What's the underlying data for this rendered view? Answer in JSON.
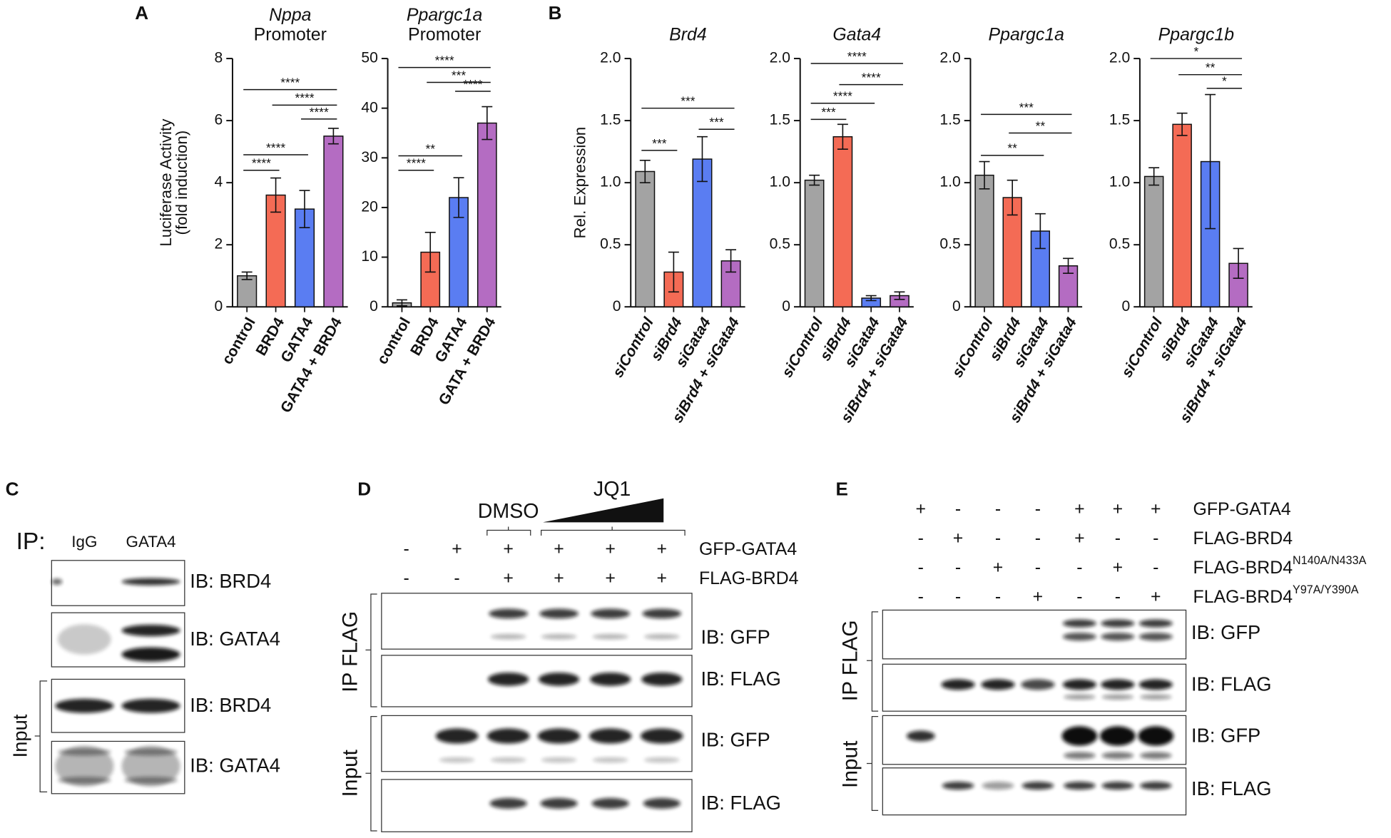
{
  "chart_data": [
    {
      "type": "bar",
      "title": "Nppa",
      "subtitle": "Promoter",
      "ylabel": [
        "Luciferase Activity",
        "(fold induction)"
      ],
      "categories": [
        "control",
        "BRD4",
        "GATA4",
        "GATA4 + BRD4"
      ],
      "values": [
        1.0,
        3.6,
        3.15,
        5.5
      ],
      "errors": [
        0.12,
        0.55,
        0.6,
        0.25
      ],
      "colors": [
        "#a3a3a3",
        "#f46b55",
        "#5a7df2",
        "#b46cc2"
      ],
      "ylim": [
        0,
        8
      ],
      "yticks": [
        0,
        2,
        4,
        6,
        8
      ],
      "category_style": "normal",
      "brackets": [
        {
          "x": [
            "control",
            "BRD4"
          ],
          "y": 4.4,
          "label": "****"
        },
        {
          "x": [
            "control",
            "GATA4"
          ],
          "y": 4.9,
          "label": "****"
        },
        {
          "x": [
            "GATA4",
            "GATA4 + BRD4"
          ],
          "y": 6.05,
          "label": "****"
        },
        {
          "x": [
            "BRD4",
            "GATA4 + BRD4"
          ],
          "y": 6.5,
          "label": "****"
        },
        {
          "x": [
            "control",
            "GATA4 + BRD4"
          ],
          "y": 7.0,
          "label": "****"
        }
      ]
    },
    {
      "type": "bar",
      "title": "Ppargc1a",
      "subtitle": "Promoter",
      "categories": [
        "control",
        "BRD4",
        "GATA4",
        "GATA + BRD4"
      ],
      "values": [
        0.8,
        11,
        22,
        37
      ],
      "errors": [
        0.6,
        4,
        4,
        3.3
      ],
      "colors": [
        "#a3a3a3",
        "#f46b55",
        "#5a7df2",
        "#b46cc2"
      ],
      "ylim": [
        0,
        50
      ],
      "yticks": [
        0,
        10,
        20,
        30,
        40,
        50
      ],
      "category_style": "normal",
      "brackets": [
        {
          "x": [
            "control",
            "BRD4"
          ],
          "y": 27.5,
          "label": "****"
        },
        {
          "x": [
            "control",
            "GATA4"
          ],
          "y": 30.4,
          "label": "**"
        },
        {
          "x": [
            "GATA4",
            "GATA + BRD4"
          ],
          "y": 43.4,
          "label": "****"
        },
        {
          "x": [
            "BRD4",
            "GATA + BRD4"
          ],
          "y": 45.2,
          "label": "***"
        },
        {
          "x": [
            "control",
            "GATA + BRD4"
          ],
          "y": 48.2,
          "label": "****"
        }
      ]
    },
    {
      "type": "bar",
      "title": "Brd4",
      "ylabel": "Rel. Expression",
      "categories": [
        "siControl",
        "siBrd4",
        "siGata4",
        "siBrd4 + siGata4"
      ],
      "values": [
        1.09,
        0.28,
        1.19,
        0.37
      ],
      "errors": [
        0.09,
        0.16,
        0.18,
        0.09
      ],
      "colors": [
        "#a3a3a3",
        "#f46b55",
        "#5a7df2",
        "#b46cc2"
      ],
      "ylim": [
        0,
        2
      ],
      "yticks": [
        0,
        0.5,
        {
          "value": 1,
          "label": "1.0"
        },
        1.5,
        {
          "value": 2,
          "label": "2.0"
        }
      ],
      "category_style": "italic",
      "brackets": [
        {
          "x": [
            "siControl",
            "siBrd4"
          ],
          "y": 1.26,
          "label": "***"
        },
        {
          "x": [
            "siGata4",
            "siBrd4 + siGata4"
          ],
          "y": 1.43,
          "label": "***"
        },
        {
          "x": [
            "siControl",
            "siBrd4 + siGata4"
          ],
          "y": 1.6,
          "label": "***"
        }
      ]
    },
    {
      "type": "bar",
      "title": "Gata4",
      "categories": [
        "siControl",
        "siBrd4",
        "siGata4",
        "siBrd4 + siGata4"
      ],
      "values": [
        1.02,
        1.37,
        0.07,
        0.09
      ],
      "errors": [
        0.04,
        0.1,
        0.02,
        0.03
      ],
      "colors": [
        "#a3a3a3",
        "#f46b55",
        "#5a7df2",
        "#b46cc2"
      ],
      "ylim": [
        0,
        2
      ],
      "yticks": [
        0,
        0.5,
        {
          "value": 1,
          "label": "1.0"
        },
        1.5,
        {
          "value": 2,
          "label": "2.0"
        }
      ],
      "category_style": "italic",
      "brackets": [
        {
          "x": [
            "siControl",
            "siBrd4"
          ],
          "y": 1.51,
          "label": "***"
        },
        {
          "x": [
            "siControl",
            "siGata4"
          ],
          "y": 1.64,
          "label": "****"
        },
        {
          "x": [
            "siBrd4",
            "siBrd4 + siGata4"
          ],
          "y": 1.79,
          "label": "****"
        },
        {
          "x": [
            "siControl",
            "siBrd4 + siGata4"
          ],
          "y": 1.96,
          "label": "****"
        }
      ]
    },
    {
      "type": "bar",
      "title": "Ppargc1a",
      "categories": [
        "siControl",
        "siBrd4",
        "siGata4",
        "siBrd4 + siGata4"
      ],
      "values": [
        1.06,
        0.88,
        0.61,
        0.33
      ],
      "errors": [
        0.11,
        0.14,
        0.14,
        0.06
      ],
      "colors": [
        "#a3a3a3",
        "#f46b55",
        "#5a7df2",
        "#b46cc2"
      ],
      "ylim": [
        0,
        2
      ],
      "yticks": [
        0,
        0.5,
        {
          "value": 1,
          "label": "1.0"
        },
        1.5,
        {
          "value": 2,
          "label": "2.0"
        }
      ],
      "category_style": "italic",
      "brackets": [
        {
          "x": [
            "siControl",
            "siGata4"
          ],
          "y": 1.22,
          "label": "**"
        },
        {
          "x": [
            "siBrd4",
            "siBrd4 + siGata4"
          ],
          "y": 1.4,
          "label": "**"
        },
        {
          "x": [
            "siControl",
            "siBrd4 + siGata4"
          ],
          "y": 1.55,
          "label": "***"
        }
      ]
    },
    {
      "type": "bar",
      "title": "Ppargc1b",
      "categories": [
        "siControl",
        "siBrd4",
        "siGata4",
        "siBrd4 + siGata4"
      ],
      "values": [
        1.05,
        1.47,
        1.17,
        0.35
      ],
      "errors": [
        0.07,
        0.09,
        0.54,
        0.12
      ],
      "colors": [
        "#a3a3a3",
        "#f46b55",
        "#5a7df2",
        "#b46cc2"
      ],
      "ylim": [
        0,
        2
      ],
      "yticks": [
        0,
        0.5,
        {
          "value": 1,
          "label": "1.0"
        },
        1.5,
        {
          "value": 2,
          "label": "2.0"
        }
      ],
      "category_style": "italic",
      "brackets": [
        {
          "x": [
            "siGata4",
            "siBrd4 + siGata4"
          ],
          "y": 1.76,
          "label": "*"
        },
        {
          "x": [
            "siBrd4",
            "siBrd4 + siGata4"
          ],
          "y": 1.87,
          "label": "**"
        },
        {
          "x": [
            "siControl",
            "siBrd4 + siGata4"
          ],
          "y": 2.0,
          "label": "*"
        }
      ]
    }
  ],
  "panel_labels": [
    "A",
    "B",
    "C",
    "D",
    "E"
  ],
  "panel_c": {
    "ip": "IP:",
    "lanes": [
      "IgG",
      "GATA4"
    ],
    "blots": [
      "IB: BRD4",
      "IB: GATA4",
      "IB: BRD4",
      "IB: GATA4"
    ],
    "group": "Input"
  },
  "panel_d": {
    "dmso": "DMSO",
    "jq1": "JQ1",
    "rows": [
      {
        "name": "GFP-GATA4",
        "signs": [
          "-",
          "+",
          "+",
          "+",
          "+",
          "+"
        ]
      },
      {
        "name": "FLAG-BRD4",
        "signs": [
          "-",
          "-",
          "+",
          "+",
          "+",
          "+"
        ]
      }
    ],
    "blots": [
      "IB: GFP",
      "IB: FLAG",
      "IB: GFP",
      "IB: FLAG"
    ],
    "groups": [
      "IP FLAG",
      "Input"
    ]
  },
  "panel_e": {
    "rows": [
      {
        "name": "GFP-GATA4",
        "signs": [
          "+",
          "-",
          "-",
          "-",
          "+",
          "+",
          "+"
        ]
      },
      {
        "name": "FLAG-BRD4",
        "signs": [
          "-",
          "+",
          "-",
          "-",
          "+",
          "-",
          "-"
        ]
      },
      {
        "name": "FLAG-BRD4",
        "sup": "N140A/N433A",
        "signs": [
          "-",
          "-",
          "+",
          "-",
          "-",
          "+",
          "-"
        ]
      },
      {
        "name": "FLAG-BRD4",
        "sup": "Y97A/Y390A",
        "signs": [
          "-",
          "-",
          "-",
          "+",
          "-",
          "-",
          "+"
        ]
      }
    ],
    "blots": [
      "IB: GFP",
      "IB: FLAG",
      "IB: GFP",
      "IB: FLAG"
    ],
    "groups": [
      "IP FLAG",
      "Input"
    ]
  }
}
